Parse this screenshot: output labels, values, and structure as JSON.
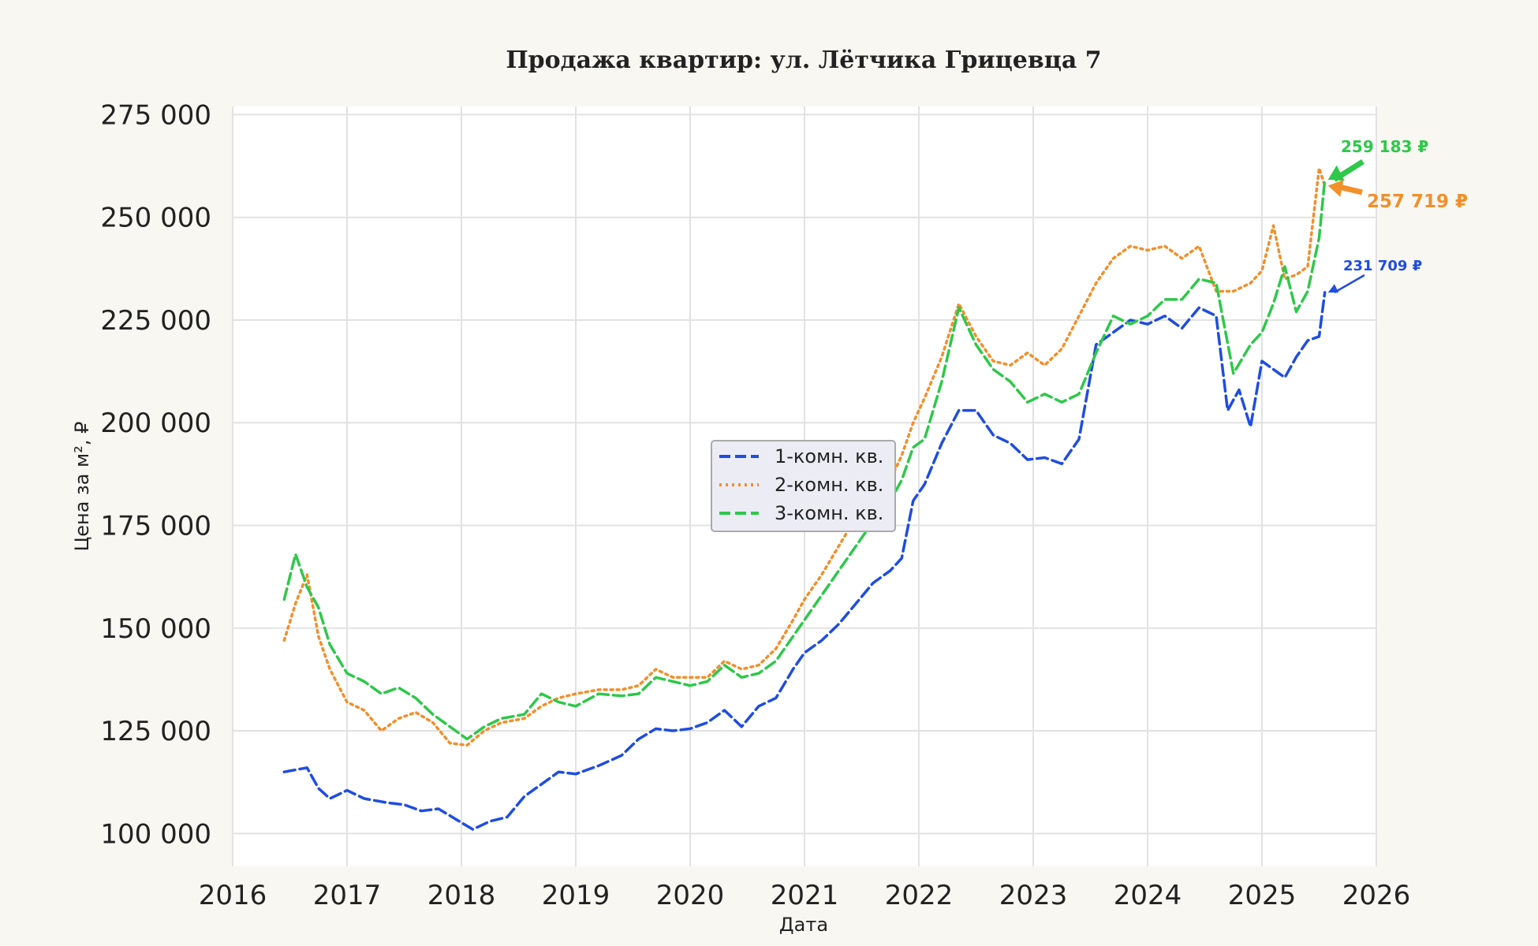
{
  "chart_data": {
    "type": "line",
    "title": "Продажа квартир: ул. Лётчика Грицевца 7",
    "xlabel": "Дата",
    "ylabel": "Цена за м², ₽",
    "xlim": [
      2016,
      2026
    ],
    "ylim": [
      92000,
      277000
    ],
    "x_ticks": [
      2016,
      2017,
      2018,
      2019,
      2020,
      2021,
      2022,
      2023,
      2024,
      2025,
      2026
    ],
    "x_tick_labels": [
      "2016",
      "2017",
      "2018",
      "2019",
      "2020",
      "2021",
      "2022",
      "2023",
      "2024",
      "2025",
      "2026"
    ],
    "y_ticks": [
      100000,
      125000,
      150000,
      175000,
      200000,
      225000,
      250000,
      275000
    ],
    "y_tick_labels": [
      "100 000",
      "125 000",
      "150 000",
      "175 000",
      "200 000",
      "225 000",
      "250 000",
      "275 000"
    ],
    "grid": true,
    "legend_position": "center",
    "series": [
      {
        "name": "1-комн. кв.",
        "color": "#1f4de0",
        "dash": "dashed",
        "x": [
          2016.45,
          2016.55,
          2016.65,
          2016.75,
          2016.85,
          2017.0,
          2017.15,
          2017.35,
          2017.5,
          2017.65,
          2017.8,
          2017.95,
          2018.1,
          2018.25,
          2018.4,
          2018.55,
          2018.7,
          2018.85,
          2019.0,
          2019.2,
          2019.4,
          2019.55,
          2019.7,
          2019.85,
          2020.0,
          2020.15,
          2020.3,
          2020.45,
          2020.6,
          2020.75,
          2020.9,
          2021.0,
          2021.15,
          2021.3,
          2021.45,
          2021.6,
          2021.75,
          2021.85,
          2021.95,
          2022.05,
          2022.2,
          2022.35,
          2022.5,
          2022.65,
          2022.8,
          2022.95,
          2023.1,
          2023.25,
          2023.4,
          2023.55,
          2023.7,
          2023.85,
          2024.0,
          2024.15,
          2024.3,
          2024.45,
          2024.6,
          2024.7,
          2024.8,
          2024.9,
          2025.0,
          2025.1,
          2025.2,
          2025.3,
          2025.4,
          2025.5,
          2025.55
        ],
        "y": [
          115000,
          115500,
          116000,
          111000,
          108500,
          110500,
          108500,
          107500,
          107000,
          105500,
          106000,
          103500,
          101000,
          103000,
          104000,
          109000,
          112000,
          115000,
          114500,
          116500,
          119000,
          123000,
          125500,
          125000,
          125500,
          127000,
          130000,
          126000,
          131000,
          133000,
          140000,
          144000,
          147000,
          151000,
          156000,
          161000,
          164000,
          167000,
          181000,
          185000,
          195000,
          203000,
          203000,
          197000,
          195000,
          191000,
          191500,
          190000,
          196000,
          219000,
          222000,
          225000,
          224000,
          226000,
          223000,
          228000,
          226000,
          203000,
          208000,
          199000,
          215000,
          213000,
          211000,
          216000,
          220000,
          221000,
          231709
        ]
      },
      {
        "name": "2-комн. кв.",
        "color": "#f28f2a",
        "dash": "dotted",
        "x": [
          2016.45,
          2016.55,
          2016.65,
          2016.75,
          2016.85,
          2017.0,
          2017.15,
          2017.3,
          2017.45,
          2017.6,
          2017.75,
          2017.9,
          2018.05,
          2018.2,
          2018.35,
          2018.55,
          2018.7,
          2018.85,
          2019.0,
          2019.2,
          2019.4,
          2019.55,
          2019.7,
          2019.85,
          2020.0,
          2020.15,
          2020.3,
          2020.45,
          2020.6,
          2020.75,
          2020.9,
          2021.0,
          2021.15,
          2021.3,
          2021.45,
          2021.6,
          2021.75,
          2021.85,
          2021.95,
          2022.05,
          2022.2,
          2022.35,
          2022.5,
          2022.65,
          2022.8,
          2022.95,
          2023.1,
          2023.25,
          2023.4,
          2023.55,
          2023.7,
          2023.85,
          2024.0,
          2024.15,
          2024.3,
          2024.45,
          2024.6,
          2024.75,
          2024.9,
          2025.0,
          2025.1,
          2025.2,
          2025.3,
          2025.4,
          2025.5,
          2025.55
        ],
        "y": [
          147000,
          156000,
          163000,
          148000,
          140000,
          132000,
          130000,
          125000,
          128000,
          129500,
          127000,
          122000,
          121500,
          125000,
          127000,
          128000,
          131000,
          133000,
          134000,
          135000,
          135000,
          136000,
          140000,
          138000,
          138000,
          138000,
          142000,
          140000,
          141000,
          145000,
          152000,
          157000,
          163000,
          170000,
          177000,
          182000,
          186000,
          192000,
          200000,
          206000,
          216000,
          229000,
          221000,
          215000,
          214000,
          217000,
          214000,
          218000,
          226000,
          234000,
          240000,
          243000,
          242000,
          243000,
          240000,
          243000,
          232000,
          232000,
          234000,
          237000,
          248000,
          235000,
          236000,
          238000,
          262000,
          257719
        ]
      },
      {
        "name": "3-комн. кв.",
        "color": "#2ec84a",
        "dash": "dashed",
        "x": [
          2016.45,
          2016.55,
          2016.65,
          2016.75,
          2016.85,
          2017.0,
          2017.15,
          2017.3,
          2017.45,
          2017.6,
          2017.75,
          2017.9,
          2018.05,
          2018.2,
          2018.35,
          2018.55,
          2018.7,
          2018.85,
          2019.0,
          2019.2,
          2019.4,
          2019.55,
          2019.7,
          2019.85,
          2020.0,
          2020.15,
          2020.3,
          2020.45,
          2020.6,
          2020.75,
          2020.9,
          2021.0,
          2021.15,
          2021.3,
          2021.45,
          2021.6,
          2021.75,
          2021.85,
          2021.95,
          2022.05,
          2022.2,
          2022.35,
          2022.5,
          2022.65,
          2022.8,
          2022.95,
          2023.1,
          2023.25,
          2023.4,
          2023.55,
          2023.7,
          2023.85,
          2024.0,
          2024.15,
          2024.3,
          2024.45,
          2024.6,
          2024.75,
          2024.9,
          2025.0,
          2025.1,
          2025.2,
          2025.3,
          2025.4,
          2025.5,
          2025.55
        ],
        "y": [
          157000,
          168000,
          160000,
          155000,
          146000,
          139000,
          137000,
          134000,
          135500,
          133000,
          129000,
          126000,
          123000,
          126000,
          128000,
          129000,
          134000,
          132000,
          131000,
          134000,
          133500,
          134000,
          138000,
          137000,
          136000,
          137000,
          141000,
          138000,
          139000,
          142000,
          148000,
          152000,
          158000,
          164000,
          170000,
          176000,
          181000,
          186000,
          194000,
          196000,
          210000,
          228000,
          219000,
          213000,
          210000,
          205000,
          207000,
          205000,
          207000,
          217000,
          226000,
          224000,
          226000,
          230000,
          230000,
          235000,
          234000,
          212000,
          219000,
          222000,
          229000,
          238000,
          227000,
          232000,
          245000,
          259183
        ]
      }
    ],
    "annotations": [
      {
        "text": "259 183 ₽",
        "color": "#2ec84a",
        "x": 2025.55,
        "y": 259183
      },
      {
        "text": "257 719 ₽",
        "color": "#f28f2a",
        "x": 2025.55,
        "y": 257719
      },
      {
        "text": "231 709 ₽",
        "color": "#1f4de0",
        "x": 2025.55,
        "y": 231709
      }
    ]
  }
}
